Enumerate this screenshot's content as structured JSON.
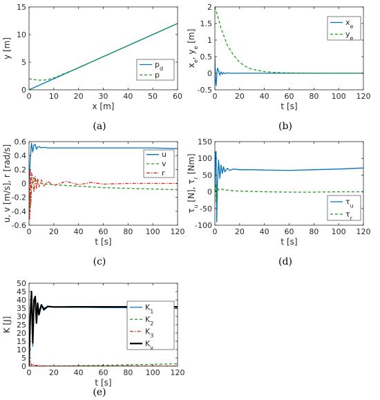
{
  "chart_data": [
    {
      "type": "line",
      "caption": "(a)",
      "xlabel": "x [m]",
      "ylabel": "y [m]",
      "xlim": [
        0,
        60
      ],
      "ylim": [
        0,
        15
      ],
      "xticks": [
        0,
        10,
        20,
        30,
        40,
        50,
        60
      ],
      "yticks": [
        0,
        5,
        10,
        15
      ],
      "legend_position": "bottom-right",
      "series": [
        {
          "name": "p_d",
          "style": "solid",
          "color": "#0072BD",
          "x": [
            0,
            10,
            20,
            30,
            40,
            50,
            60
          ],
          "y": [
            0,
            2,
            4,
            6,
            8,
            10,
            12
          ]
        },
        {
          "name": "p",
          "style": "dashed",
          "color": "#1a9a1a",
          "x": [
            0,
            2,
            4,
            6,
            8,
            10,
            12,
            14,
            16,
            18,
            20,
            25,
            30,
            40,
            50,
            60
          ],
          "y": [
            2.0,
            1.85,
            1.75,
            1.75,
            1.9,
            2.15,
            2.5,
            2.9,
            3.25,
            3.6,
            4.0,
            5.0,
            6.0,
            8.0,
            10.0,
            12.0
          ]
        }
      ]
    },
    {
      "type": "line",
      "caption": "(b)",
      "xlabel": "t [s]",
      "ylabel": "x_e, y_e [m]",
      "xlim": [
        0,
        120
      ],
      "ylim": [
        -0.5,
        2
      ],
      "xticks": [
        0,
        20,
        40,
        60,
        80,
        100,
        120
      ],
      "yticks": [
        -0.5,
        0,
        0.5,
        1,
        1.5,
        2
      ],
      "legend_position": "top-right",
      "series": [
        {
          "name": "x_e",
          "style": "solid",
          "color": "#0072BD",
          "x": [
            0,
            0.5,
            1,
            1.5,
            2,
            3,
            4,
            5,
            6,
            7,
            8,
            10,
            12,
            15,
            20,
            40,
            80,
            120
          ],
          "y": [
            0.5,
            -0.2,
            -0.38,
            -0.1,
            0.15,
            0.08,
            -0.06,
            0.04,
            -0.03,
            0.02,
            -0.01,
            0.01,
            0,
            0,
            0,
            0,
            0,
            0
          ]
        },
        {
          "name": "y_e",
          "style": "dashed",
          "color": "#1a9a1a",
          "x": [
            0,
            2,
            5,
            10,
            15,
            20,
            25,
            30,
            40,
            50,
            60,
            80,
            100,
            120
          ],
          "y": [
            2.0,
            1.75,
            1.35,
            0.85,
            0.55,
            0.33,
            0.2,
            0.12,
            0.05,
            0.02,
            0.01,
            0,
            0,
            0
          ]
        }
      ]
    },
    {
      "type": "line",
      "caption": "(c)",
      "xlabel": "t [s]",
      "ylabel": "u, v [m/s], r [rad/s]",
      "xlim": [
        0,
        120
      ],
      "ylim": [
        -0.6,
        0.6
      ],
      "xticks": [
        0,
        20,
        40,
        60,
        80,
        100,
        120
      ],
      "yticks": [
        -0.6,
        -0.4,
        -0.2,
        0,
        0.2,
        0.4,
        0.6
      ],
      "legend_position": "top-right",
      "series": [
        {
          "name": "u",
          "style": "solid",
          "color": "#0072BD",
          "x": [
            0,
            1,
            2,
            3,
            4,
            5,
            6,
            7,
            8,
            10,
            12,
            15,
            20,
            40,
            60,
            80,
            100,
            120
          ],
          "y": [
            0,
            0.35,
            0.58,
            0.45,
            0.55,
            0.56,
            0.49,
            0.52,
            0.53,
            0.51,
            0.52,
            0.51,
            0.51,
            0.51,
            0.51,
            0.51,
            0.51,
            0.5
          ]
        },
        {
          "name": "v",
          "style": "dashed",
          "color": "#1a9a1a",
          "x": [
            0,
            1,
            2,
            3,
            4,
            6,
            10,
            20,
            40,
            60,
            80,
            100,
            120
          ],
          "y": [
            0,
            -0.35,
            -0.1,
            0.05,
            0.08,
            0.04,
            0.0,
            -0.02,
            -0.04,
            -0.06,
            -0.07,
            -0.08,
            -0.09
          ]
        },
        {
          "name": "r",
          "style": "dashdot",
          "color": "#e8221b",
          "x": [
            0,
            0.5,
            1,
            1.5,
            2,
            3,
            4,
            5,
            6,
            7,
            8,
            10,
            12,
            15,
            20,
            30,
            40,
            50,
            60,
            80,
            120
          ],
          "y": [
            0,
            -0.52,
            0.2,
            -0.3,
            0.15,
            0.08,
            -0.12,
            0.1,
            -0.08,
            0.07,
            -0.05,
            0.05,
            -0.04,
            0.03,
            -0.03,
            0.03,
            -0.02,
            0.015,
            -0.01,
            0.0,
            0.0
          ]
        }
      ]
    },
    {
      "type": "line",
      "caption": "(d)",
      "xlabel": "t [s]",
      "ylabel": "τ_u [N], τ_r [Nm]",
      "xlim": [
        0,
        120
      ],
      "ylim": [
        -100,
        150
      ],
      "xticks": [
        0,
        20,
        40,
        60,
        80,
        100,
        120
      ],
      "yticks": [
        -100,
        -50,
        0,
        50,
        100,
        150
      ],
      "legend_position": "bottom-right",
      "series": [
        {
          "name": "τ_u",
          "style": "solid",
          "color": "#0072BD",
          "x": [
            0,
            0.5,
            1,
            1.5,
            2,
            3,
            4,
            5,
            6,
            7,
            8,
            10,
            12,
            15,
            20,
            30,
            40,
            60,
            80,
            100,
            120
          ],
          "y": [
            0,
            120,
            120,
            -90,
            20,
            95,
            40,
            80,
            55,
            75,
            60,
            70,
            64,
            68,
            66,
            66,
            65,
            64,
            66,
            68,
            71
          ]
        },
        {
          "name": "τ_r",
          "style": "dashed",
          "color": "#1a9a1a",
          "x": [
            0,
            0.5,
            1,
            1.5,
            2,
            3,
            5,
            8,
            12,
            20,
            40,
            60,
            80,
            100,
            120
          ],
          "y": [
            0,
            25,
            -30,
            10,
            15,
            5,
            8,
            6,
            4,
            2,
            0,
            -1,
            -1,
            0,
            0
          ]
        }
      ]
    },
    {
      "type": "line",
      "caption": "(e)",
      "xlabel": "t [s]",
      "ylabel": "K [J]",
      "xlim": [
        0,
        120
      ],
      "ylim": [
        0,
        50
      ],
      "xticks": [
        0,
        20,
        40,
        60,
        80,
        100,
        120
      ],
      "yticks": [
        0,
        5,
        10,
        15,
        20,
        25,
        30,
        35,
        40,
        45,
        50
      ],
      "legend_position": "center-right",
      "series": [
        {
          "name": "K_1",
          "style": "solid",
          "color": "#0072BD",
          "x": [
            0,
            1,
            2,
            3,
            4,
            5,
            6,
            7,
            8,
            10,
            12,
            15,
            20,
            40,
            60,
            80,
            100,
            120
          ],
          "y": [
            0,
            25,
            44,
            12,
            38,
            42,
            30,
            38,
            33,
            37,
            35,
            36,
            35.5,
            35.5,
            35.3,
            35.2,
            35.0,
            34.8
          ]
        },
        {
          "name": "K_2",
          "style": "dashed",
          "color": "#1a9a1a",
          "x": [
            0,
            20,
            40,
            60,
            80,
            100,
            120
          ],
          "y": [
            0,
            0.1,
            0.3,
            0.5,
            0.8,
            1.1,
            1.4
          ]
        },
        {
          "name": "K_3",
          "style": "dashdot",
          "color": "#e8221b",
          "x": [
            0,
            1,
            2,
            3,
            4,
            6,
            10,
            20,
            120
          ],
          "y": [
            0,
            3,
            0.5,
            1.5,
            0.3,
            0.5,
            0.2,
            0.1,
            0.1
          ]
        },
        {
          "name": "K_v",
          "style": "solid-thick",
          "color": "#000000",
          "x": [
            0,
            1,
            2,
            3,
            4,
            5,
            6,
            7,
            8,
            10,
            12,
            15,
            20,
            40,
            60,
            80,
            100,
            120
          ],
          "y": [
            0,
            30,
            45,
            14,
            40,
            42,
            26,
            38,
            31,
            37,
            34,
            36,
            35.7,
            35.8,
            35.8,
            35.8,
            35.8,
            35.8
          ]
        }
      ]
    }
  ]
}
